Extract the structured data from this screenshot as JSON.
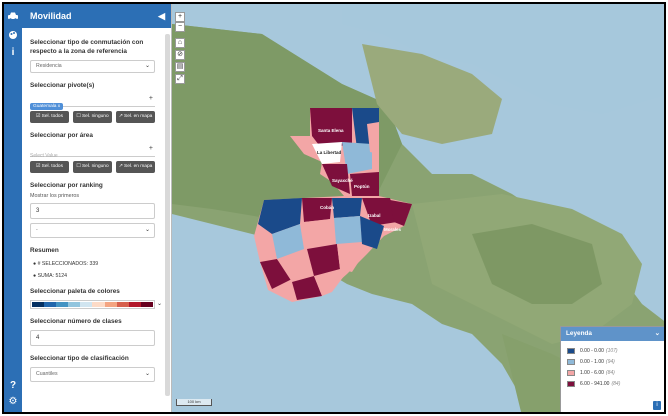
{
  "panel": {
    "title": "Movilidad",
    "collapse_icon": "chevron-left-icon",
    "commute_label": "Seleccionar tipo de conmutación con respecto a la zona de referencia",
    "commute_value": "Residencia",
    "pivot_label": "Seleccionar pivote(s)",
    "pivot_tag": "Guatemala x",
    "btn_all": "☑ Sel. todos",
    "btn_none": "☐ Sel. ninguno",
    "btn_map": "↗ Sel. en mapa",
    "area_label": "Seleccionar por área",
    "area_placeholder": "Select Value",
    "ranking_label": "Seleccionar por ranking",
    "ranking_sub": "Mostrar los primeros",
    "ranking_value": "3",
    "ranking_select": "-",
    "summary_label": "Resumen",
    "summary_selected": "# SELECCIONADOS: 339",
    "summary_sum": "SUMA: 5124",
    "palette_label": "Seleccionar paleta de colores",
    "palette_colors": [
      "#053061",
      "#2166ac",
      "#4393c3",
      "#92c5de",
      "#d1e5f0",
      "#fddbc7",
      "#f4a582",
      "#d6604d",
      "#b2182b",
      "#67001f"
    ],
    "classes_label": "Seleccionar número de clases",
    "classes_value": "4",
    "class_type_label": "Seleccionar tipo de clasificación",
    "class_type_value": "Cuantiles"
  },
  "rail": {
    "icons": [
      "car-icon",
      "palette-icon",
      "info-icon",
      "help-icon",
      "settings-icon"
    ]
  },
  "map": {
    "controls": [
      "+",
      "−"
    ],
    "tools": [
      "home-icon",
      "no-icon",
      "print-icon",
      "fullscreen-icon"
    ],
    "scale_text": "100 km",
    "labels": [
      "Santa Elena",
      "La Libertad",
      "Sayaxché",
      "Poptún",
      "Cobán",
      "Izabal",
      "Morales"
    ]
  },
  "legend": {
    "title": "Leyenda",
    "items": [
      {
        "range": "0.00 - 0.00",
        "count": "(107)",
        "color": "#1a4a8a"
      },
      {
        "range": "0.00 - 1.00",
        "count": "(94)",
        "color": "#8fb9d8"
      },
      {
        "range": "1.00 - 6.00",
        "count": "(84)",
        "color": "#f3a6a6"
      },
      {
        "range": "6.00 - 941.00",
        "count": "(84)",
        "color": "#7d0f3c"
      }
    ]
  }
}
